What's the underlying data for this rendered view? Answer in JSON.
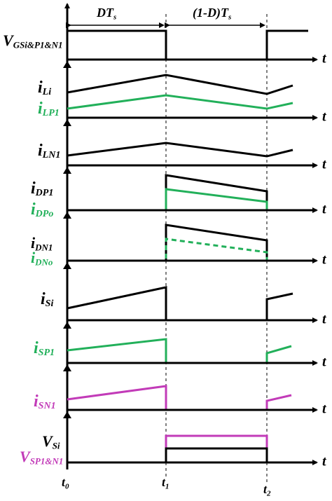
{
  "header": {
    "intervals": [
      {
        "main": "DT",
        "sub": "s"
      },
      {
        "main": "(1-D)T",
        "sub": "s"
      }
    ]
  },
  "panels": [
    {
      "labels": [
        {
          "main": "V",
          "sub": "GSi&P1&N1"
        }
      ],
      "axis_label": "t"
    },
    {
      "labels": [
        {
          "main": "i",
          "sub": "Li"
        },
        {
          "main": "i",
          "sub": "LP1"
        }
      ],
      "axis_label": "t"
    },
    {
      "labels": [
        {
          "main": "i",
          "sub": "LN1"
        }
      ],
      "axis_label": "t"
    },
    {
      "labels": [
        {
          "main": "i",
          "sub": "DP1"
        },
        {
          "main": "i",
          "sub": "DPo"
        }
      ],
      "axis_label": "t"
    },
    {
      "labels": [
        {
          "main": "i",
          "sub": "DN1"
        },
        {
          "main": "i",
          "sub": "DNo"
        }
      ],
      "axis_label": "t"
    },
    {
      "labels": [
        {
          "main": "i",
          "sub": "Si"
        }
      ],
      "axis_label": "t"
    },
    {
      "labels": [
        {
          "main": "i",
          "sub": "SP1"
        }
      ],
      "axis_label": "t"
    },
    {
      "labels": [
        {
          "main": "i",
          "sub": "SN1"
        }
      ],
      "axis_label": "t"
    },
    {
      "labels": [
        {
          "main": "V",
          "sub": "Si"
        },
        {
          "main": "V",
          "sub": "SP1&N1"
        }
      ],
      "axis_label": "t"
    }
  ],
  "time_marks": [
    {
      "main": "t",
      "sub": "0"
    },
    {
      "main": "t",
      "sub": "1"
    },
    {
      "main": "t",
      "sub": "2"
    }
  ]
}
